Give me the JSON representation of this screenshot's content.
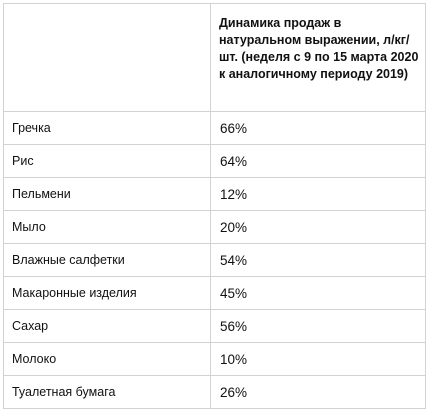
{
  "table": {
    "header": {
      "product": "",
      "value": "Динамика продаж в натуральном выражении, л/кг/шт. (неделя с 9 по 15 марта 2020 к аналогичному периоду 2019)"
    },
    "rows": [
      {
        "product": "Гречка",
        "value": "66%"
      },
      {
        "product": "Рис",
        "value": "64%"
      },
      {
        "product": "Пельмени",
        "value": "12%"
      },
      {
        "product": "Мыло",
        "value": "20%"
      },
      {
        "product": "Влажные салфетки",
        "value": "54%"
      },
      {
        "product": "Макаронные изделия",
        "value": "45%"
      },
      {
        "product": "Сахар",
        "value": "56%"
      },
      {
        "product": "Молоко",
        "value": "10%"
      },
      {
        "product": "Туалетная бумага",
        "value": "26%"
      }
    ]
  },
  "colors": {
    "border": "#d2d2d2",
    "text": "#111111",
    "background": "#ffffff"
  }
}
